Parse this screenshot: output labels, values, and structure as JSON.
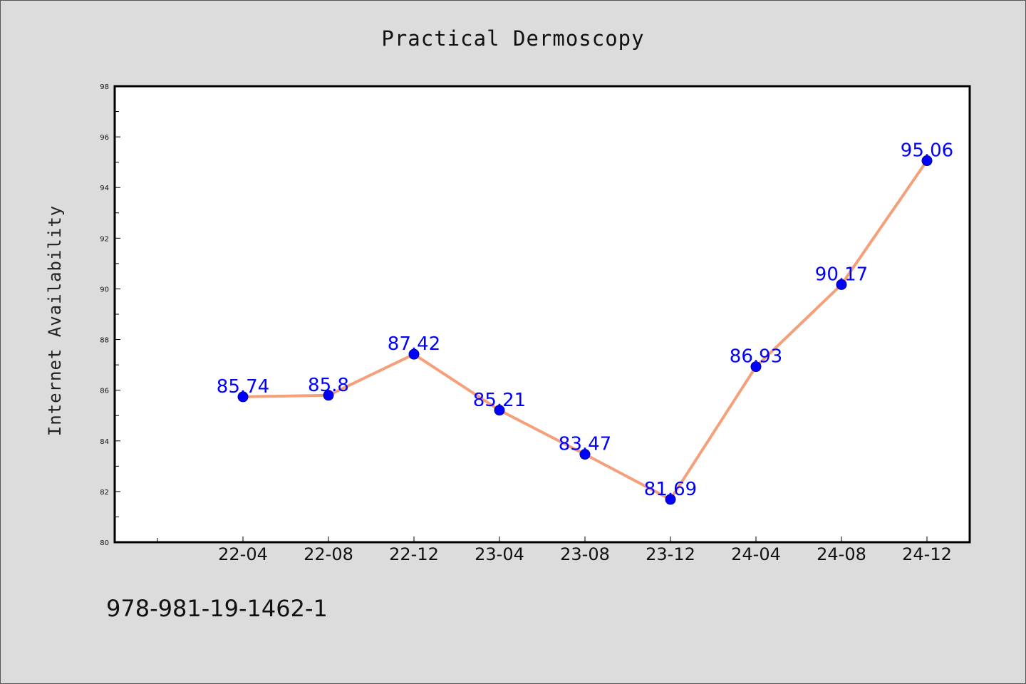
{
  "chart_data": {
    "type": "line",
    "title": "Practical Dermoscopy",
    "xlabel": "",
    "ylabel": "Internet Availability",
    "categories": [
      "22-04",
      "22-08",
      "22-12",
      "23-04",
      "23-08",
      "23-12",
      "24-04",
      "24-08",
      "24-12"
    ],
    "series": [
      {
        "values": [
          85.74,
          85.8,
          87.42,
          85.21,
          83.47,
          81.69,
          86.93,
          90.17,
          95.06
        ],
        "data_labels": [
          "85.74",
          "85.8",
          "87.42",
          "85.21",
          "83.47",
          "81.69",
          "86.93",
          "90.17",
          "95.06"
        ],
        "line_color": "#f4a07a",
        "marker_color": "#0000ff"
      }
    ],
    "ylim": [
      80,
      98
    ],
    "yticks": [
      "80",
      "82",
      "84",
      "86",
      "88",
      "90",
      "92",
      "94",
      "96",
      "98"
    ],
    "grid": false,
    "legend": "none"
  },
  "footer_text": "978-981-19-1462-1",
  "colors": {
    "background": "#dcdcdc",
    "plot_area": "#ffffff",
    "line": "#f4a07a",
    "marker": "#0000ff",
    "data_label": "#0000ff"
  }
}
